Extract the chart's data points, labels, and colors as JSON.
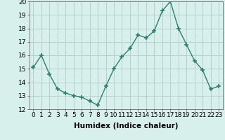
{
  "x": [
    0,
    1,
    2,
    3,
    4,
    5,
    6,
    7,
    8,
    9,
    10,
    11,
    12,
    13,
    14,
    15,
    16,
    17,
    18,
    19,
    20,
    21,
    22,
    23
  ],
  "y": [
    15.1,
    16.0,
    14.6,
    13.5,
    13.2,
    13.0,
    12.9,
    12.6,
    12.3,
    13.7,
    15.0,
    15.9,
    16.5,
    17.5,
    17.3,
    17.8,
    19.3,
    20.0,
    18.0,
    16.8,
    15.6,
    14.9,
    13.5,
    13.7
  ],
  "xlim": [
    -0.5,
    23.5
  ],
  "ylim": [
    12,
    20
  ],
  "yticks": [
    12,
    13,
    14,
    15,
    16,
    17,
    18,
    19,
    20
  ],
  "xticks": [
    0,
    1,
    2,
    3,
    4,
    5,
    6,
    7,
    8,
    9,
    10,
    11,
    12,
    13,
    14,
    15,
    16,
    17,
    18,
    19,
    20,
    21,
    22,
    23
  ],
  "xlabel": "Humidex (Indice chaleur)",
  "line_color": "#2e7d6e",
  "marker": "+",
  "marker_size": 5,
  "line_width": 1.0,
  "bg_color": "#d8f0ec",
  "grid_color": "#b0ccc8",
  "xlabel_fontsize": 7.5,
  "tick_fontsize": 6.5
}
